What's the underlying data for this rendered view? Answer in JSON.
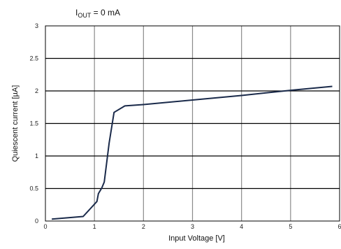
{
  "chart_data": {
    "type": "line",
    "title": "",
    "annotation": {
      "main": "I",
      "sub": "OUT",
      "rest": " = 0 mA"
    },
    "xlabel": "Input Voltage [V]",
    "ylabel": "Quiescent current [µA]",
    "xlim": [
      0,
      6
    ],
    "ylim": [
      0,
      3
    ],
    "x_ticks": [
      0,
      1,
      2,
      3,
      4,
      5,
      6
    ],
    "y_ticks": [
      0,
      0.5,
      1,
      1.5,
      2,
      2.5,
      3
    ],
    "x_tick_labels": [
      "0",
      "1",
      "2",
      "3",
      "4",
      "5",
      "6"
    ],
    "y_tick_labels": [
      "0",
      "0.5",
      "1",
      "1.5",
      "2",
      "2.5",
      "3"
    ],
    "grid": true,
    "series": [
      {
        "color": "#1a2a4a",
        "x": [
          0.13,
          0.77,
          1.05,
          1.08,
          1.15,
          1.2,
          1.3,
          1.4,
          1.62,
          2.0,
          3.0,
          4.0,
          5.0,
          5.85
        ],
        "y": [
          0.03,
          0.07,
          0.3,
          0.42,
          0.51,
          0.6,
          1.2,
          1.67,
          1.77,
          1.79,
          1.86,
          1.93,
          2.01,
          2.07
        ]
      }
    ]
  }
}
